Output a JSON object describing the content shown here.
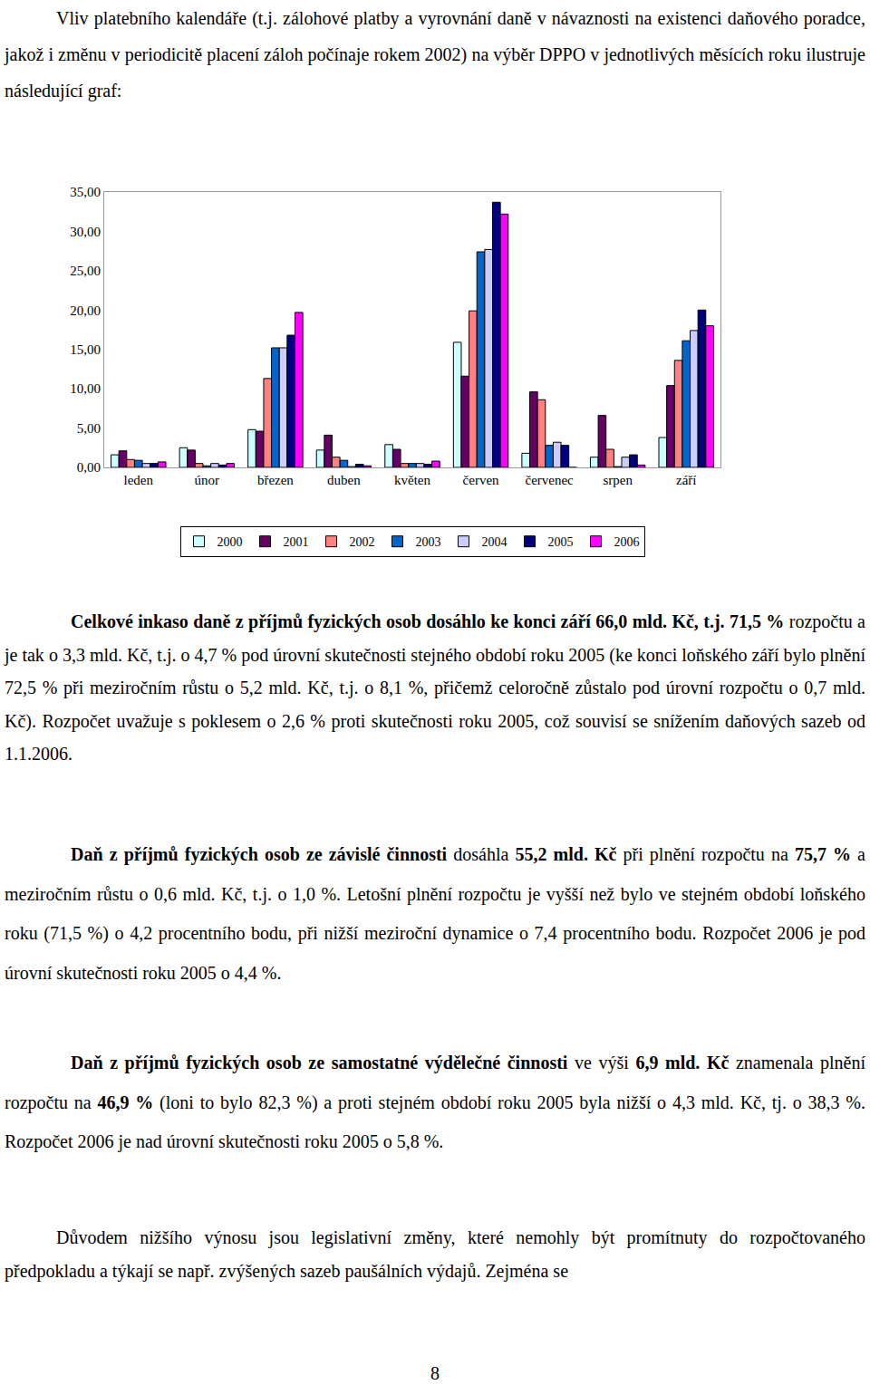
{
  "intro": [
    {
      "text": "Vliv platebního kalendáře (t.j. zálohové platby a vyrovnání daně v návaznosti na existenci daňového poradce, jakož i změnu v periodicitě placení záloh počínaje rokem 2002) na výběr DPPO v jednotlivých měsících roku ilustruje následující graf:",
      "bold": false
    }
  ],
  "chart_data": {
    "type": "bar",
    "categories": [
      "leden",
      "únor",
      "březen",
      "duben",
      "květen",
      "červen",
      "červenec",
      "srpen",
      "září"
    ],
    "series": [
      {
        "name": "2000",
        "color": "#ccffff",
        "values": [
          1.6,
          2.5,
          4.8,
          2.2,
          2.9,
          15.9,
          1.8,
          1.3,
          3.8
        ]
      },
      {
        "name": "2001",
        "color": "#660066",
        "values": [
          2.1,
          2.2,
          4.6,
          4.1,
          2.3,
          11.6,
          9.6,
          6.6,
          10.4
        ]
      },
      {
        "name": "2002",
        "color": "#ff8080",
        "values": [
          1.0,
          0.5,
          11.3,
          1.3,
          0.5,
          19.9,
          8.6,
          2.3,
          13.6
        ]
      },
      {
        "name": "2003",
        "color": "#0066cc",
        "values": [
          0.9,
          0.2,
          15.2,
          0.9,
          0.5,
          27.4,
          2.8,
          0.1,
          16.1
        ]
      },
      {
        "name": "2004",
        "color": "#ccccff",
        "values": [
          0.5,
          0.5,
          15.2,
          0.1,
          0.5,
          27.7,
          3.2,
          1.3,
          17.4
        ]
      },
      {
        "name": "2005",
        "color": "#000080",
        "values": [
          0.5,
          0.3,
          16.8,
          0.4,
          0.4,
          33.7,
          2.8,
          1.6,
          20.0
        ]
      },
      {
        "name": "2006",
        "color": "#ff00ff",
        "values": [
          0.7,
          0.5,
          19.7,
          0.2,
          0.8,
          32.2,
          0.0,
          0.3,
          18.0
        ]
      }
    ],
    "ylim": [
      0,
      35
    ],
    "yticks": [
      {
        "value": 0,
        "label": "0,00"
      },
      {
        "value": 5,
        "label": "5,00"
      },
      {
        "value": 10,
        "label": "10,00"
      },
      {
        "value": 15,
        "label": "15,00"
      },
      {
        "value": 20,
        "label": "20,00"
      },
      {
        "value": 25,
        "label": "25,00"
      },
      {
        "value": 30,
        "label": "30,00"
      },
      {
        "value": 35,
        "label": "35,00"
      }
    ],
    "grid": false,
    "legend": "bottom"
  },
  "paragraphs": [
    [
      {
        "text": "Celkové inkaso daně z příjmů fyzických osob dosáhlo ke konci září 66,0 mld. Kč, t.j. 71,5 %",
        "bold": true
      },
      {
        "text": " rozpočtu a je tak o 3,3 mld. Kč, t.j. o 4,7 % pod úrovní skutečnosti stejného období roku 2005 (ke konci loňského září bylo plnění 72,5 % při meziročním růstu o 5,2 mld. Kč, t.j. o 8,1 %, přičemž celoročně zůstalo pod úrovní rozpočtu o 0,7 mld. Kč). Rozpočet uvažuje s poklesem o 2,6 % proti skutečnosti roku 2005, což souvisí se snížením daňových sazeb od 1.1.2006.",
        "bold": false
      }
    ],
    [
      {
        "text": "Daň z příjmů fyzických osob ze závislé činnosti",
        "bold": true
      },
      {
        "text": " dosáhla ",
        "bold": false
      },
      {
        "text": "55,2 mld. Kč",
        "bold": true
      },
      {
        "text": " při plnění rozpočtu na ",
        "bold": false
      },
      {
        "text": "75,7 %",
        "bold": true
      },
      {
        "text": " a meziročním růstu o 0,6 mld. Kč, t.j. o 1,0 %. Letošní plnění rozpočtu je vyšší než bylo ve stejném období loňského roku (71,5 %) o 4,2 procentního bodu, při nižší meziroční dynamice o 7,4 procentního bodu. Rozpočet 2006 je pod úrovní skutečnosti roku 2005 o 4,4 %.",
        "bold": false
      }
    ],
    [
      {
        "text": "Daň z příjmů fyzických osob ze samostatné výdělečné činnosti",
        "bold": true
      },
      {
        "text": " ve výši ",
        "bold": false
      },
      {
        "text": "6,9 mld. Kč",
        "bold": true
      },
      {
        "text": " znamenala plnění rozpočtu na ",
        "bold": false
      },
      {
        "text": "46,9 %",
        "bold": true
      },
      {
        "text": " (loni to bylo 82,3 %) a proti stejném období roku 2005 byla nižší o 4,3 mld. Kč, tj. o 38,3 %. Rozpočet 2006 je nad úrovní skutečnosti roku 2005 o 5,8 %.",
        "bold": false
      }
    ],
    [
      {
        "text": "Důvodem nižšího výnosu jsou legislativní změny, které nemohly být promítnuty do rozpočtovaného předpokladu a týkají se např. zvýšených sazeb paušálních výdajů. Zejména se",
        "bold": false
      }
    ]
  ],
  "page_number": "8"
}
